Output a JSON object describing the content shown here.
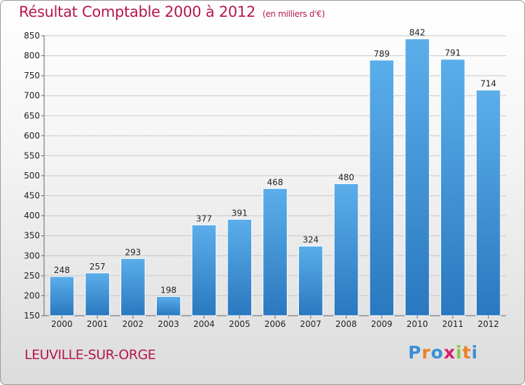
{
  "title": "Résultat Comptable 2000 à 2012",
  "subtitle": "(en milliers d'€)",
  "city": "LEUVILLE-SUR-ORGE",
  "logo": {
    "letters": [
      "P",
      "r",
      "o",
      "x",
      "i",
      "t",
      "i"
    ],
    "colors": [
      "#3a8fd8",
      "#e8832a",
      "#3a8fd8",
      "#d81f6a",
      "#8cc63f",
      "#e8832a",
      "#3a8fd8"
    ]
  },
  "colors": {
    "bar_light": "#5baeea",
    "bar_dark": "#2a78bf",
    "title": "#b5184a"
  },
  "chart_data": {
    "type": "bar",
    "categories": [
      "2000",
      "2001",
      "2002",
      "2003",
      "2004",
      "2005",
      "2006",
      "2007",
      "2008",
      "2009",
      "2010",
      "2011",
      "2012"
    ],
    "values": [
      248,
      257,
      293,
      198,
      377,
      391,
      468,
      324,
      480,
      789,
      842,
      791,
      714
    ],
    "ylim": [
      150,
      850
    ],
    "yticks": [
      150,
      200,
      250,
      300,
      350,
      400,
      450,
      500,
      550,
      600,
      650,
      700,
      750,
      800,
      850
    ],
    "grid": true
  }
}
